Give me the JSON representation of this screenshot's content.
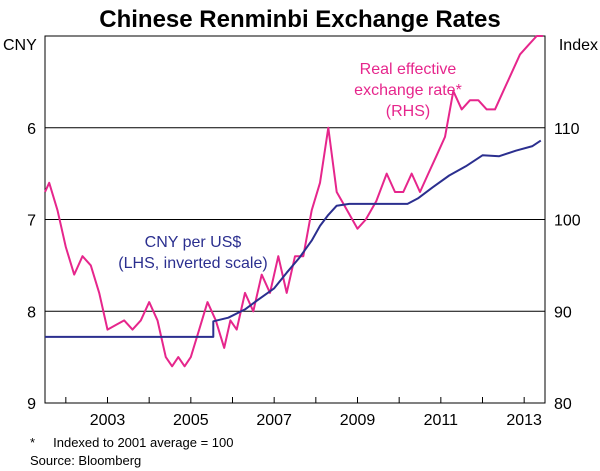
{
  "chart_data": {
    "type": "line",
    "title": "Chinese Renminbi Exchange Rates",
    "left_axis": {
      "unit": "CNY",
      "range": [
        9,
        5
      ],
      "ticks": [
        6,
        7,
        8,
        9
      ],
      "inverted": true
    },
    "right_axis": {
      "unit": "Index",
      "range": [
        80,
        120
      ],
      "ticks": [
        80,
        90,
        100,
        110
      ]
    },
    "x_axis": {
      "range": [
        2001.5,
        2013.5
      ],
      "ticks": [
        2003,
        2005,
        2007,
        2009,
        2011,
        2013
      ],
      "tick_labels": [
        "2003",
        "2005",
        "2007",
        "2009",
        "2011",
        "2013"
      ]
    },
    "colors": {
      "cny": "#2b2f8f",
      "reer": "#e6268c"
    },
    "series": [
      {
        "name": "CNY per US$",
        "axis": "left",
        "annotation": [
          "CNY per US$",
          "(LHS, inverted scale)"
        ],
        "x": [
          2001.5,
          2005.54,
          2005.54,
          2005.9,
          2006.3,
          2006.6,
          2007.0,
          2007.3,
          2007.6,
          2007.9,
          2008.1,
          2008.3,
          2008.5,
          2008.8,
          2009.5,
          2010.2,
          2010.45,
          2010.8,
          2011.2,
          2011.6,
          2012.0,
          2012.4,
          2012.8,
          2013.2,
          2013.4
        ],
        "y": [
          8.28,
          8.28,
          8.11,
          8.07,
          7.98,
          7.88,
          7.75,
          7.58,
          7.42,
          7.23,
          7.07,
          6.95,
          6.85,
          6.83,
          6.83,
          6.83,
          6.77,
          6.65,
          6.52,
          6.42,
          6.3,
          6.31,
          6.25,
          6.2,
          6.14
        ]
      },
      {
        "name": "Real effective exchange rate*",
        "axis": "right",
        "annotation": [
          "Real effective",
          "exchange rate*",
          "(RHS)"
        ],
        "x": [
          2001.5,
          2001.6,
          2001.8,
          2002.0,
          2002.2,
          2002.4,
          2002.6,
          2002.8,
          2003.0,
          2003.2,
          2003.4,
          2003.6,
          2003.8,
          2004.0,
          2004.2,
          2004.4,
          2004.55,
          2004.7,
          2004.85,
          2005.0,
          2005.2,
          2005.4,
          2005.6,
          2005.8,
          2005.95,
          2006.1,
          2006.3,
          2006.5,
          2006.7,
          2006.9,
          2007.1,
          2007.3,
          2007.5,
          2007.7,
          2007.9,
          2008.1,
          2008.3,
          2008.5,
          2008.75,
          2009.0,
          2009.2,
          2009.45,
          2009.7,
          2009.9,
          2010.1,
          2010.3,
          2010.5,
          2010.7,
          2010.9,
          2011.1,
          2011.3,
          2011.5,
          2011.7,
          2011.9,
          2012.1,
          2012.3,
          2012.5,
          2012.7,
          2012.9,
          2013.1,
          2013.3,
          2013.45
        ],
        "y": [
          103,
          104,
          101,
          97,
          94,
          96,
          95,
          92,
          88,
          88.5,
          89,
          88,
          89,
          91,
          89,
          85,
          84,
          85,
          84,
          85,
          88,
          91,
          89,
          86,
          89,
          88,
          92,
          90,
          94,
          92,
          96,
          92,
          96,
          96,
          101,
          104,
          110,
          103,
          101,
          99,
          100,
          102,
          105,
          103,
          103,
          105,
          103,
          105,
          107,
          109,
          114,
          112,
          113,
          113,
          112,
          112,
          114,
          116,
          118,
          119,
          120,
          120
        ]
      }
    ],
    "footnotes": [
      "*     Indexed to 2001 average = 100",
      "Source: Bloomberg"
    ]
  }
}
